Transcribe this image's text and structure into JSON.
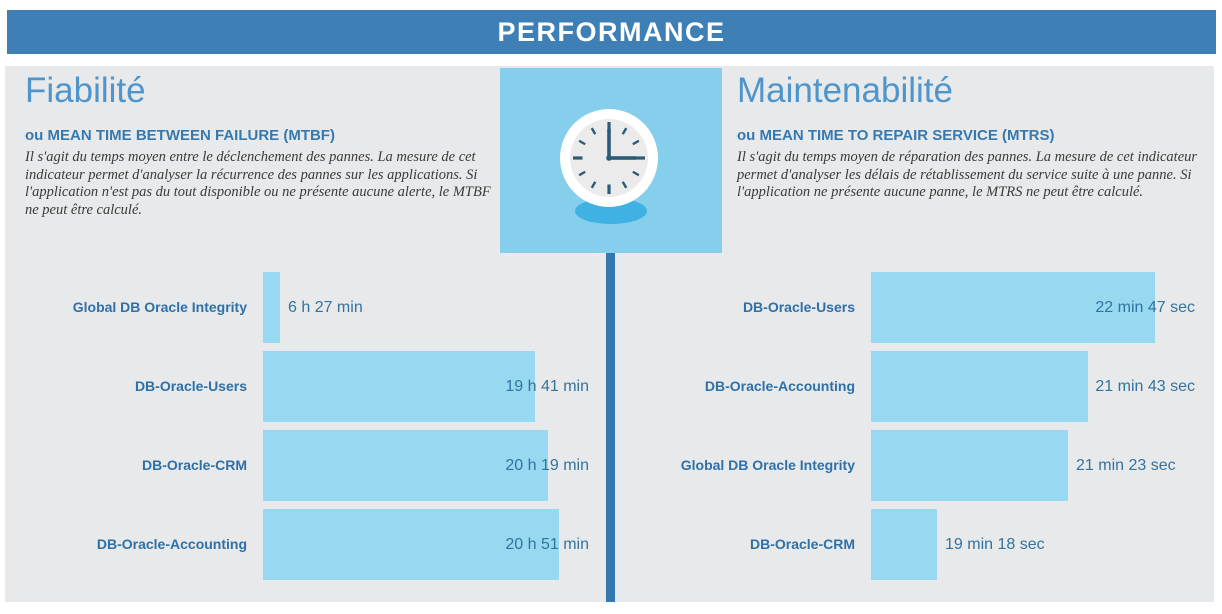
{
  "header": {
    "title": "PERFORMANCE"
  },
  "sections": [
    {
      "id": "fiabilite",
      "title": "Fiabilité",
      "subtitle": "ou MEAN TIME BETWEEN FAILURE (MTBF)",
      "description": "Il s'agit du temps moyen entre le déclenchement des pannes. La mesure de cet indicateur permet d'analyser la récurrence des pannes sur les applications. Si l'application n'est pas du tout disponible ou ne présente aucune alerte, le MTBF ne peut être calculé."
    },
    {
      "id": "maintenabilite",
      "title": "Maintenabilité",
      "subtitle": "ou MEAN TIME TO REPAIR SERVICE (MTRS)",
      "description": "Il s'agit du temps moyen de réparation des pannes. La mesure de cet indicateur permet d'analyser les délais de rétablissement du service suite à une panne. Si l'application ne présente aucune panne, le MTRS ne peut être calculé."
    }
  ],
  "icons": {
    "center": "clock-icon"
  },
  "colors": {
    "header_blue": "#3E80B6",
    "panel_gray": "#E8E9EA",
    "bar_blue": "#97D9F1",
    "title_blue": "#4E95CB",
    "label_blue": "#2E70A8",
    "divider_blue": "#3478B0",
    "clock_square_blue": "#85CEEC",
    "clock_shadow_blue": "#3FB2E3",
    "clock_dark": "#2B5B76",
    "body_text": "#3A3A3A"
  },
  "chart_data": [
    {
      "type": "bar",
      "orientation": "horizontal",
      "title": "Fiabilité (MTBF)",
      "unit": "minutes",
      "xlim": [
        391,
        1339
      ],
      "min_bar_fraction": 0.052,
      "grid": false,
      "legend": false,
      "categories": [
        "Global DB Oracle Integrity",
        "DB-Oracle-Users",
        "DB-Oracle-CRM",
        "DB-Oracle-Accounting"
      ],
      "values": [
        387,
        1181,
        1219,
        1251
      ],
      "value_labels": [
        "6 h 27 min",
        "19 h 41 min",
        "20 h 19 min",
        "20 h 51 min"
      ]
    },
    {
      "type": "bar",
      "orientation": "horizontal",
      "title": "Maintenabilité (MTRS)",
      "unit": "seconds",
      "xlim": [
        1095,
        1405
      ],
      "min_bar_fraction": 0.05,
      "grid": false,
      "legend": false,
      "categories": [
        "DB-Oracle-Users",
        "DB-Oracle-Accounting",
        "Global DB Oracle Integrity",
        "DB-Oracle-CRM"
      ],
      "values": [
        1367,
        1303,
        1283,
        1158
      ],
      "value_labels": [
        "22 min 47 sec",
        "21 min 43 sec",
        "21 min 23 sec",
        "19 min 18 sec"
      ]
    }
  ]
}
